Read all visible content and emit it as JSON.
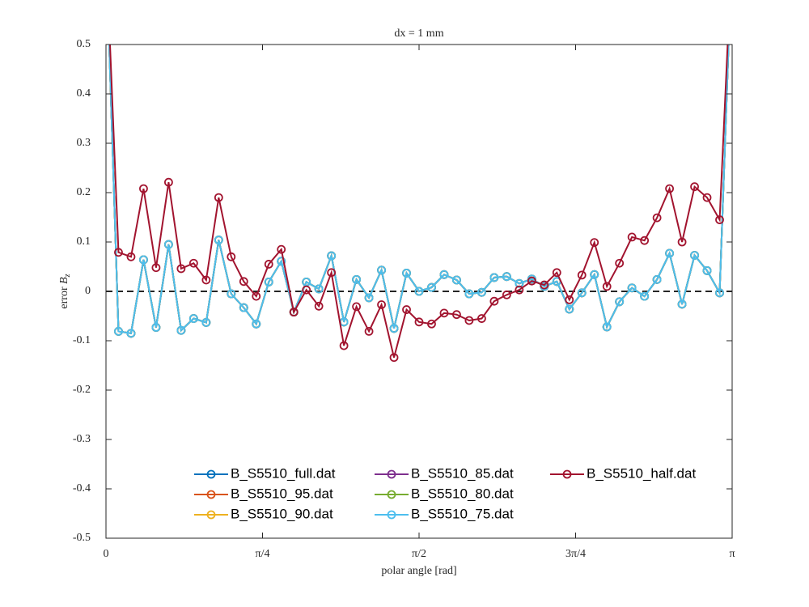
{
  "chart_data": {
    "type": "line",
    "title": "dx = 1 mm",
    "xlabel": "polar angle [rad]",
    "ylabel": [
      "error ",
      "B",
      "z"
    ],
    "x": [
      0,
      0.0628,
      0.1257,
      0.1885,
      0.2513,
      0.3142,
      0.377,
      0.4398,
      0.5027,
      0.5655,
      0.6283,
      0.6912,
      0.754,
      0.8168,
      0.8796,
      0.9425,
      1.0053,
      1.0681,
      1.131,
      1.1938,
      1.2566,
      1.3195,
      1.3823,
      1.4451,
      1.508,
      1.5708,
      1.6336,
      1.6965,
      1.7593,
      1.8221,
      1.885,
      1.9478,
      2.0106,
      2.0735,
      2.1363,
      2.1991,
      2.2619,
      2.3248,
      2.3876,
      2.4504,
      2.5133,
      2.5761,
      2.6389,
      2.7018,
      2.7646,
      2.8274,
      2.8903,
      2.9531,
      3.0159,
      3.0788,
      3.1416
    ],
    "series": [
      {
        "name": "B_S5510_full.dat",
        "color": "#0072BD",
        "values": [
          0.7,
          -0.081,
          -0.085,
          0.064,
          -0.073,
          0.095,
          -0.079,
          -0.055,
          -0.063,
          0.104,
          -0.005,
          -0.033,
          -0.066,
          0.019,
          0.061,
          -0.042,
          0.019,
          0.005,
          0.072,
          -0.062,
          0.024,
          -0.013,
          0.043,
          -0.075,
          0.037,
          0.0,
          0.008,
          0.034,
          0.023,
          -0.005,
          -0.002,
          0.028,
          0.03,
          0.016,
          0.025,
          0.01,
          0.02,
          -0.036,
          -0.003,
          0.034,
          -0.072,
          -0.021,
          0.007,
          -0.01,
          0.024,
          0.077,
          -0.026,
          0.073,
          0.042,
          -0.003,
          0.7
        ]
      },
      {
        "name": "B_S5510_95.dat",
        "color": "#D95319",
        "values": [
          0.7,
          -0.081,
          -0.085,
          0.064,
          -0.073,
          0.095,
          -0.079,
          -0.055,
          -0.063,
          0.104,
          -0.005,
          -0.033,
          -0.066,
          0.019,
          0.061,
          -0.042,
          0.019,
          0.005,
          0.072,
          -0.062,
          0.024,
          -0.013,
          0.043,
          -0.075,
          0.037,
          0.0,
          0.008,
          0.034,
          0.023,
          -0.005,
          -0.002,
          0.028,
          0.03,
          0.016,
          0.025,
          0.01,
          0.02,
          -0.036,
          -0.003,
          0.034,
          -0.072,
          -0.021,
          0.007,
          -0.01,
          0.024,
          0.077,
          -0.026,
          0.073,
          0.042,
          -0.003,
          0.7
        ]
      },
      {
        "name": "B_S5510_90.dat",
        "color": "#EDB120",
        "values": [
          0.7,
          -0.081,
          -0.085,
          0.064,
          -0.073,
          0.095,
          -0.079,
          -0.055,
          -0.063,
          0.104,
          -0.005,
          -0.033,
          -0.066,
          0.019,
          0.061,
          -0.042,
          0.019,
          0.005,
          0.072,
          -0.062,
          0.024,
          -0.013,
          0.043,
          -0.075,
          0.037,
          0.0,
          0.008,
          0.034,
          0.023,
          -0.005,
          -0.002,
          0.028,
          0.03,
          0.016,
          0.025,
          0.01,
          0.02,
          -0.036,
          -0.003,
          0.034,
          -0.072,
          -0.021,
          0.007,
          -0.01,
          0.024,
          0.077,
          -0.026,
          0.073,
          0.042,
          -0.003,
          0.7
        ]
      },
      {
        "name": "B_S5510_85.dat",
        "color": "#7E2F8E",
        "values": [
          0.7,
          -0.081,
          -0.085,
          0.064,
          -0.073,
          0.095,
          -0.079,
          -0.055,
          -0.063,
          0.104,
          -0.005,
          -0.033,
          -0.066,
          0.019,
          0.061,
          -0.042,
          0.019,
          0.005,
          0.072,
          -0.062,
          0.024,
          -0.013,
          0.043,
          -0.075,
          0.037,
          0.0,
          0.008,
          0.034,
          0.023,
          -0.005,
          -0.002,
          0.028,
          0.03,
          0.016,
          0.025,
          0.01,
          0.02,
          -0.036,
          -0.003,
          0.034,
          -0.072,
          -0.021,
          0.007,
          -0.01,
          0.024,
          0.077,
          -0.026,
          0.073,
          0.042,
          -0.003,
          0.7
        ]
      },
      {
        "name": "B_S5510_80.dat",
        "color": "#77AC30",
        "values": [
          0.7,
          -0.081,
          -0.085,
          0.064,
          -0.073,
          0.095,
          -0.079,
          -0.055,
          -0.063,
          0.104,
          -0.005,
          -0.033,
          -0.066,
          0.019,
          0.061,
          -0.042,
          0.019,
          0.005,
          0.072,
          -0.062,
          0.024,
          -0.013,
          0.043,
          -0.075,
          0.037,
          0.0,
          0.008,
          0.034,
          0.023,
          -0.005,
          -0.002,
          0.028,
          0.03,
          0.016,
          0.025,
          0.01,
          0.02,
          -0.036,
          -0.003,
          0.034,
          -0.072,
          -0.021,
          0.007,
          -0.01,
          0.024,
          0.077,
          -0.026,
          0.073,
          0.042,
          -0.003,
          0.7
        ]
      },
      {
        "name": "B_S5510_75.dat",
        "color": "#4DBEEE",
        "values": [
          0.7,
          -0.081,
          -0.085,
          0.064,
          -0.073,
          0.095,
          -0.079,
          -0.055,
          -0.063,
          0.104,
          -0.005,
          -0.033,
          -0.066,
          0.019,
          0.061,
          -0.042,
          0.019,
          0.005,
          0.072,
          -0.062,
          0.024,
          -0.013,
          0.043,
          -0.075,
          0.037,
          0.0,
          0.008,
          0.034,
          0.023,
          -0.005,
          -0.002,
          0.028,
          0.03,
          0.016,
          0.025,
          0.01,
          0.02,
          -0.036,
          -0.003,
          0.034,
          -0.072,
          -0.021,
          0.007,
          -0.01,
          0.024,
          0.077,
          -0.026,
          0.073,
          0.042,
          -0.003,
          0.7
        ]
      },
      {
        "name": "B_S5510_half.dat",
        "color": "#A2142F",
        "values": [
          0.7,
          0.079,
          0.07,
          0.208,
          0.048,
          0.221,
          0.046,
          0.057,
          0.023,
          0.19,
          0.07,
          0.02,
          -0.01,
          0.055,
          0.085,
          -0.042,
          0.003,
          -0.03,
          0.038,
          -0.11,
          -0.031,
          -0.081,
          -0.027,
          -0.134,
          -0.037,
          -0.062,
          -0.066,
          -0.044,
          -0.047,
          -0.059,
          -0.055,
          -0.02,
          -0.007,
          0.003,
          0.021,
          0.013,
          0.038,
          -0.017,
          0.033,
          0.099,
          0.01,
          0.057,
          0.11,
          0.103,
          0.149,
          0.208,
          0.1,
          0.212,
          0.19,
          0.145,
          0.7
        ]
      }
    ],
    "hline": 0,
    "xlim": [
      0,
      3.1416
    ],
    "xticks": [
      0,
      {
        "value": 0.7854,
        "label": "π/4"
      },
      {
        "value": 1.5708,
        "label": "π/2"
      },
      {
        "value": 2.3562,
        "label": "3π/4"
      },
      {
        "value": 3.1416,
        "label": "π"
      }
    ],
    "ylim": [
      -0.5,
      0.5
    ],
    "yticks": [
      -0.5,
      -0.4,
      -0.3,
      -0.2,
      -0.1,
      0,
      0.1,
      0.2,
      0.3,
      0.4,
      0.5
    ],
    "legend": "bottom",
    "legend_columns": 3
  }
}
